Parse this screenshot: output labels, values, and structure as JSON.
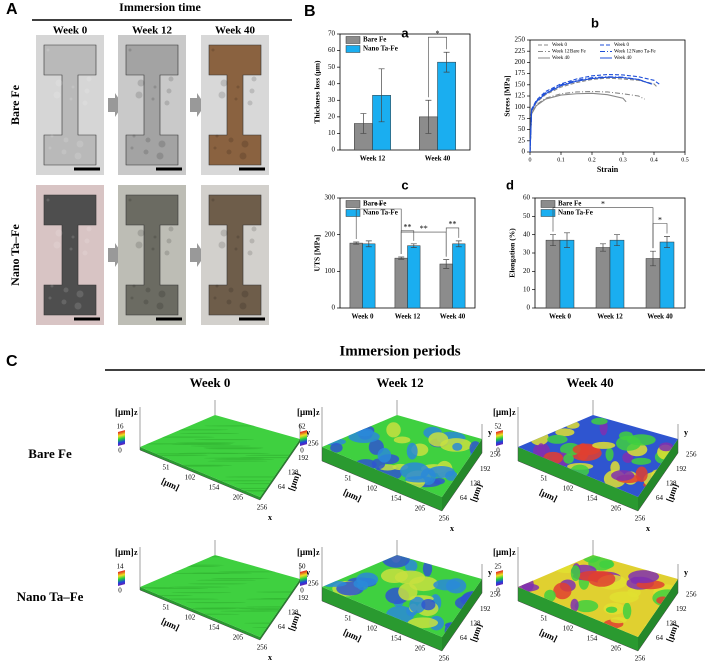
{
  "panel_a": {
    "label": "A",
    "heading": "Immersion time",
    "columns": [
      "Week 0",
      "Week 12",
      "Week 40"
    ],
    "rows": [
      "Bare Fe",
      "Nano Ta–Fe"
    ]
  },
  "panel_b": {
    "label": "B"
  },
  "chart_data": [
    {
      "type": "bar",
      "title": "a",
      "ylabel": "Thickness loss (μm)",
      "categories": [
        "Week 12",
        "Week 40"
      ],
      "series": [
        {
          "name": "Bare Fe",
          "color": "#8c8c8c",
          "values": [
            16,
            20
          ],
          "errors": [
            6,
            10
          ]
        },
        {
          "name": "Nano Ta-Fe",
          "color": "#1aaef0",
          "values": [
            33,
            53
          ],
          "errors": [
            16,
            6
          ]
        }
      ],
      "ylim": [
        0,
        70
      ],
      "yticks": [
        0,
        10,
        20,
        30,
        40,
        50,
        60,
        70
      ],
      "legend": "upper left",
      "annotations": [
        "*"
      ]
    },
    {
      "type": "line",
      "title": "b",
      "xlabel": "Strain",
      "ylabel": "Stress [MPa]",
      "xlim": [
        0,
        0.5
      ],
      "xticks": [
        0,
        0.1,
        0.2,
        0.3,
        0.4,
        0.5
      ],
      "ylim": [
        0,
        250
      ],
      "yticks": [
        0,
        25,
        50,
        75,
        100,
        125,
        150,
        175,
        200,
        225,
        250
      ],
      "legend_groups": [
        "Bare Fe",
        "Nano Ta-Fe"
      ],
      "series": [
        {
          "name": "Week 0",
          "color": "#888888",
          "style": "dashed",
          "x": [
            0,
            0.005,
            0.02,
            0.05,
            0.1,
            0.15,
            0.2,
            0.25,
            0.3,
            0.35,
            0.4,
            0.41
          ],
          "values": [
            0,
            90,
            110,
            128,
            145,
            155,
            162,
            165,
            163,
            160,
            152,
            145
          ]
        },
        {
          "name": "Week 12",
          "color": "#888888",
          "style": "dashdot",
          "x": [
            0,
            0.005,
            0.02,
            0.05,
            0.1,
            0.15,
            0.2,
            0.25,
            0.3,
            0.35,
            0.37
          ],
          "values": [
            0,
            85,
            105,
            120,
            130,
            134,
            135,
            134,
            130,
            125,
            118
          ]
        },
        {
          "name": "Week 40",
          "color": "#888888",
          "style": "solid",
          "x": [
            0,
            0.005,
            0.02,
            0.05,
            0.1,
            0.15,
            0.2,
            0.25,
            0.3,
            0.31
          ],
          "values": [
            0,
            85,
            103,
            118,
            127,
            130,
            131,
            128,
            120,
            112
          ]
        },
        {
          "name": "Week 0",
          "color": "#1f4fd8",
          "style": "dashed",
          "x": [
            0,
            0.005,
            0.02,
            0.05,
            0.1,
            0.15,
            0.2,
            0.25,
            0.3,
            0.35,
            0.4,
            0.42
          ],
          "values": [
            0,
            95,
            115,
            135,
            152,
            163,
            170,
            173,
            172,
            168,
            160,
            150
          ]
        },
        {
          "name": "Week 12",
          "color": "#1f4fd8",
          "style": "dashdot",
          "x": [
            0,
            0.005,
            0.02,
            0.05,
            0.1,
            0.15,
            0.2,
            0.25,
            0.3,
            0.35,
            0.4
          ],
          "values": [
            0,
            95,
            113,
            132,
            150,
            160,
            166,
            168,
            167,
            162,
            150
          ]
        },
        {
          "name": "Week 40",
          "color": "#1f4fd8",
          "style": "solid",
          "x": [
            0,
            0.005,
            0.02,
            0.05,
            0.1,
            0.15,
            0.2,
            0.25,
            0.3,
            0.35,
            0.39
          ],
          "values": [
            0,
            92,
            112,
            130,
            148,
            158,
            164,
            167,
            166,
            162,
            152
          ]
        }
      ]
    },
    {
      "type": "bar",
      "title": "c",
      "ylabel": "UTS [MPa]",
      "categories": [
        "Week 0",
        "Week 12",
        "Week 40"
      ],
      "series": [
        {
          "name": "Bare Fe",
          "color": "#8c8c8c",
          "values": [
            177,
            136,
            120
          ],
          "errors": [
            3,
            3,
            12
          ]
        },
        {
          "name": "Nano Ta-Fe",
          "color": "#1aaef0",
          "values": [
            175,
            170,
            175
          ],
          "errors": [
            8,
            5,
            8
          ]
        }
      ],
      "ylim": [
        0,
        300
      ],
      "yticks": [
        0,
        100,
        200,
        300
      ],
      "legend": "upper left",
      "annotations": [
        "**",
        "**",
        "**",
        "**"
      ]
    },
    {
      "type": "bar",
      "title": "d",
      "ylabel": "Elongation (%)",
      "categories": [
        "Week 0",
        "Week 12",
        "Week 40"
      ],
      "series": [
        {
          "name": "Bare Fe",
          "color": "#8c8c8c",
          "values": [
            37,
            33,
            27
          ],
          "errors": [
            3,
            2,
            4
          ]
        },
        {
          "name": "Nano Ta-Fe",
          "color": "#1aaef0",
          "values": [
            37,
            37,
            36
          ],
          "errors": [
            4,
            3,
            3
          ]
        }
      ],
      "ylim": [
        0,
        60
      ],
      "yticks": [
        0,
        10,
        20,
        30,
        40,
        50,
        60
      ],
      "legend": "upper left",
      "annotations": [
        "*",
        "*"
      ]
    }
  ],
  "panel_c": {
    "label": "C",
    "heading": "Immersion periods",
    "columns": [
      "Week 0",
      "Week 12",
      "Week 40"
    ],
    "rows": [
      "Bare Fe",
      "Nano Ta–Fe"
    ],
    "unit": "[μm]",
    "axis_x": "x",
    "axis_y": "y",
    "axis_z": "z",
    "x_ticks": [
      51,
      102,
      154,
      205,
      256
    ],
    "y_ticks": [
      256,
      192,
      128,
      64
    ],
    "plots": [
      {
        "z_ticks": [
          16,
          0
        ]
      },
      {
        "z_ticks": [
          62,
          0
        ]
      },
      {
        "z_ticks": [
          52,
          0
        ]
      },
      {
        "z_ticks": [
          14,
          0
        ]
      },
      {
        "z_ticks": [
          50,
          0
        ]
      },
      {
        "z_ticks": [
          25,
          0
        ]
      }
    ]
  }
}
